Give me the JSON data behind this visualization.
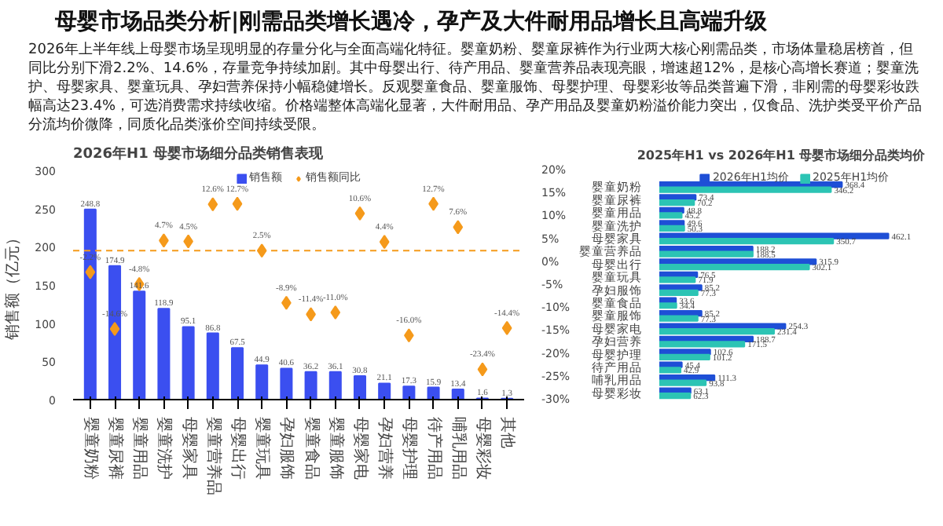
{
  "chart_data": [
    {
      "type": "other",
      "title": "母婴市场品类分析|刚需品类增长遇冷，孕产及大件耐用品增长且高端升级",
      "annotations": [
        "2026年上半年线上母婴市场呈现明显的存量分化与全面高端化特征。婴童奶粉、婴童尿裤作为行业两大核心刚需品类，市场体量稳居榜首，但同比分别下滑2.2%、14.6%，存量竞争持续加剧。其中母婴出行、待产用品、婴童营养品表现亮眼，增速超12%，是核心高增长赛道；婴童洗护、母婴家具、婴童玩具、孕妇营养保持小幅稳健增长。反观婴童食品、婴童服饰、母婴护理、母婴彩妆等品类普遍下滑，非刚需的母婴彩妆跌幅高达23.4%，可选消费需求持续收缩。价格端整体高端化显著，大件耐用品、孕产用品及婴童奶粉溢价能力突出，仅食品、洗护类受平价产品分流均价微降，同质化品类涨价空间持续受限。"
      ]
    },
    {
      "type": "bar",
      "title": "2026年H1  母婴市场细分品类销售表现",
      "ylabel": "销售额（亿元）",
      "categories": [
        "婴童奶粉",
        "婴童尿裤",
        "婴童用品",
        "婴童洗护",
        "母婴家具",
        "婴童营养品",
        "母婴出行",
        "婴童玩具",
        "孕妇服饰",
        "婴童食品",
        "婴童服饰",
        "母婴家电",
        "孕妇营养",
        "母婴护理",
        "待产用品",
        "哺乳用品",
        "母婴彩妆",
        "其他"
      ],
      "series": [
        {
          "name": "销售额",
          "type": "bar",
          "color": "#3b4ff0",
          "values": [
            248.8,
            174.9,
            141.6,
            118.9,
            95.1,
            86.8,
            67.5,
            44.9,
            40.6,
            36.2,
            36.1,
            30.8,
            21.1,
            17.3,
            15.9,
            13.4,
            1.6,
            1.3
          ],
          "value_labels": [
            "248.8",
            "174.9",
            "141.6",
            "118.9",
            "95.1",
            "86.8",
            "67.5",
            "44.9",
            "40.6",
            "36.2",
            "36.1",
            "30.8",
            "21.1",
            "17.3",
            "15.9",
            "13.4",
            "1.6",
            "1.3"
          ]
        },
        {
          "name": "销售额同比",
          "type": "scatter",
          "axis": "y2",
          "marker": "diamond",
          "color": "#f59a1b",
          "values": [
            -2.2,
            -14.6,
            -4.8,
            4.7,
            4.5,
            12.6,
            12.7,
            2.5,
            -8.9,
            -11.4,
            -11.0,
            10.6,
            4.4,
            -16.0,
            12.7,
            7.6,
            -23.4,
            -14.4
          ],
          "value_labels": [
            "-2.2%",
            "-14.6%",
            "-4.8%",
            "4.7%",
            "4.5%",
            "12.6%",
            "12.7%",
            "2.5%",
            "-8.9%",
            "-11.4%",
            "-11.0%",
            "10.6%",
            "4.4%",
            "-16.0%",
            "12.7%",
            "7.6%",
            "-23.4%",
            "-14.4%"
          ]
        }
      ],
      "ylim": [
        0,
        300
      ],
      "yticks": [
        0,
        50,
        100,
        150,
        200,
        250,
        300
      ],
      "y2lim": [
        -30,
        20
      ],
      "y2ticks": [
        {
          "value": -30,
          "label": "-30%"
        },
        {
          "value": -25,
          "label": "-25%"
        },
        {
          "value": -20,
          "label": "-20%"
        },
        {
          "value": -15,
          "label": "-15%"
        },
        {
          "value": -10,
          "label": "-10%"
        },
        {
          "value": -5,
          "label": "-5%"
        },
        {
          "value": 0,
          "label": "0%"
        },
        {
          "value": 5,
          "label": "5%"
        },
        {
          "value": 10,
          "label": "10%"
        },
        {
          "value": 15,
          "label": "15%"
        },
        {
          "value": 20,
          "label": "20%"
        }
      ],
      "ref_lines": [
        {
          "axis": "y2",
          "value": 2.5,
          "color": "#f59a1b",
          "line_style": "dashed"
        }
      ],
      "legend": "top",
      "grid": false
    },
    {
      "type": "bar",
      "orientation": "horizontal",
      "title": "2025年H1 vs 2026年H1  母婴市场细分品类均价",
      "tick_labels": "y",
      "data_labels": true,
      "legend": "top",
      "grid": false,
      "categories": [
        "婴童奶粉",
        "婴童尿裤",
        "婴童用品",
        "婴童洗护",
        "母婴家具",
        "婴童营养品",
        "母婴出行",
        "婴童玩具",
        "孕妇服饰",
        "婴童食品",
        "婴童服饰",
        "母婴家电",
        "孕妇营养",
        "母婴护理",
        "待产用品",
        "哺乳用品",
        "母婴彩妆"
      ],
      "series": [
        {
          "name": "2026年H1均价",
          "color": "#1e4fd6",
          "values": [
            368.4,
            73.4,
            48.8,
            49.6,
            462.1,
            188.2,
            315.9,
            76.5,
            85.2,
            33.6,
            85.2,
            254.3,
            188.7,
            102.6,
            45.4,
            111.3,
            63.1
          ]
        },
        {
          "name": "2025年H1均价",
          "color": "#2cc4b4",
          "values": [
            346.2,
            70.2,
            45.2,
            50.3,
            350.7,
            188.5,
            302.1,
            71.9,
            77.3,
            34.4,
            77.3,
            231.4,
            171.5,
            101.2,
            42.9,
            93.8,
            62.3
          ]
        }
      ]
    }
  ]
}
